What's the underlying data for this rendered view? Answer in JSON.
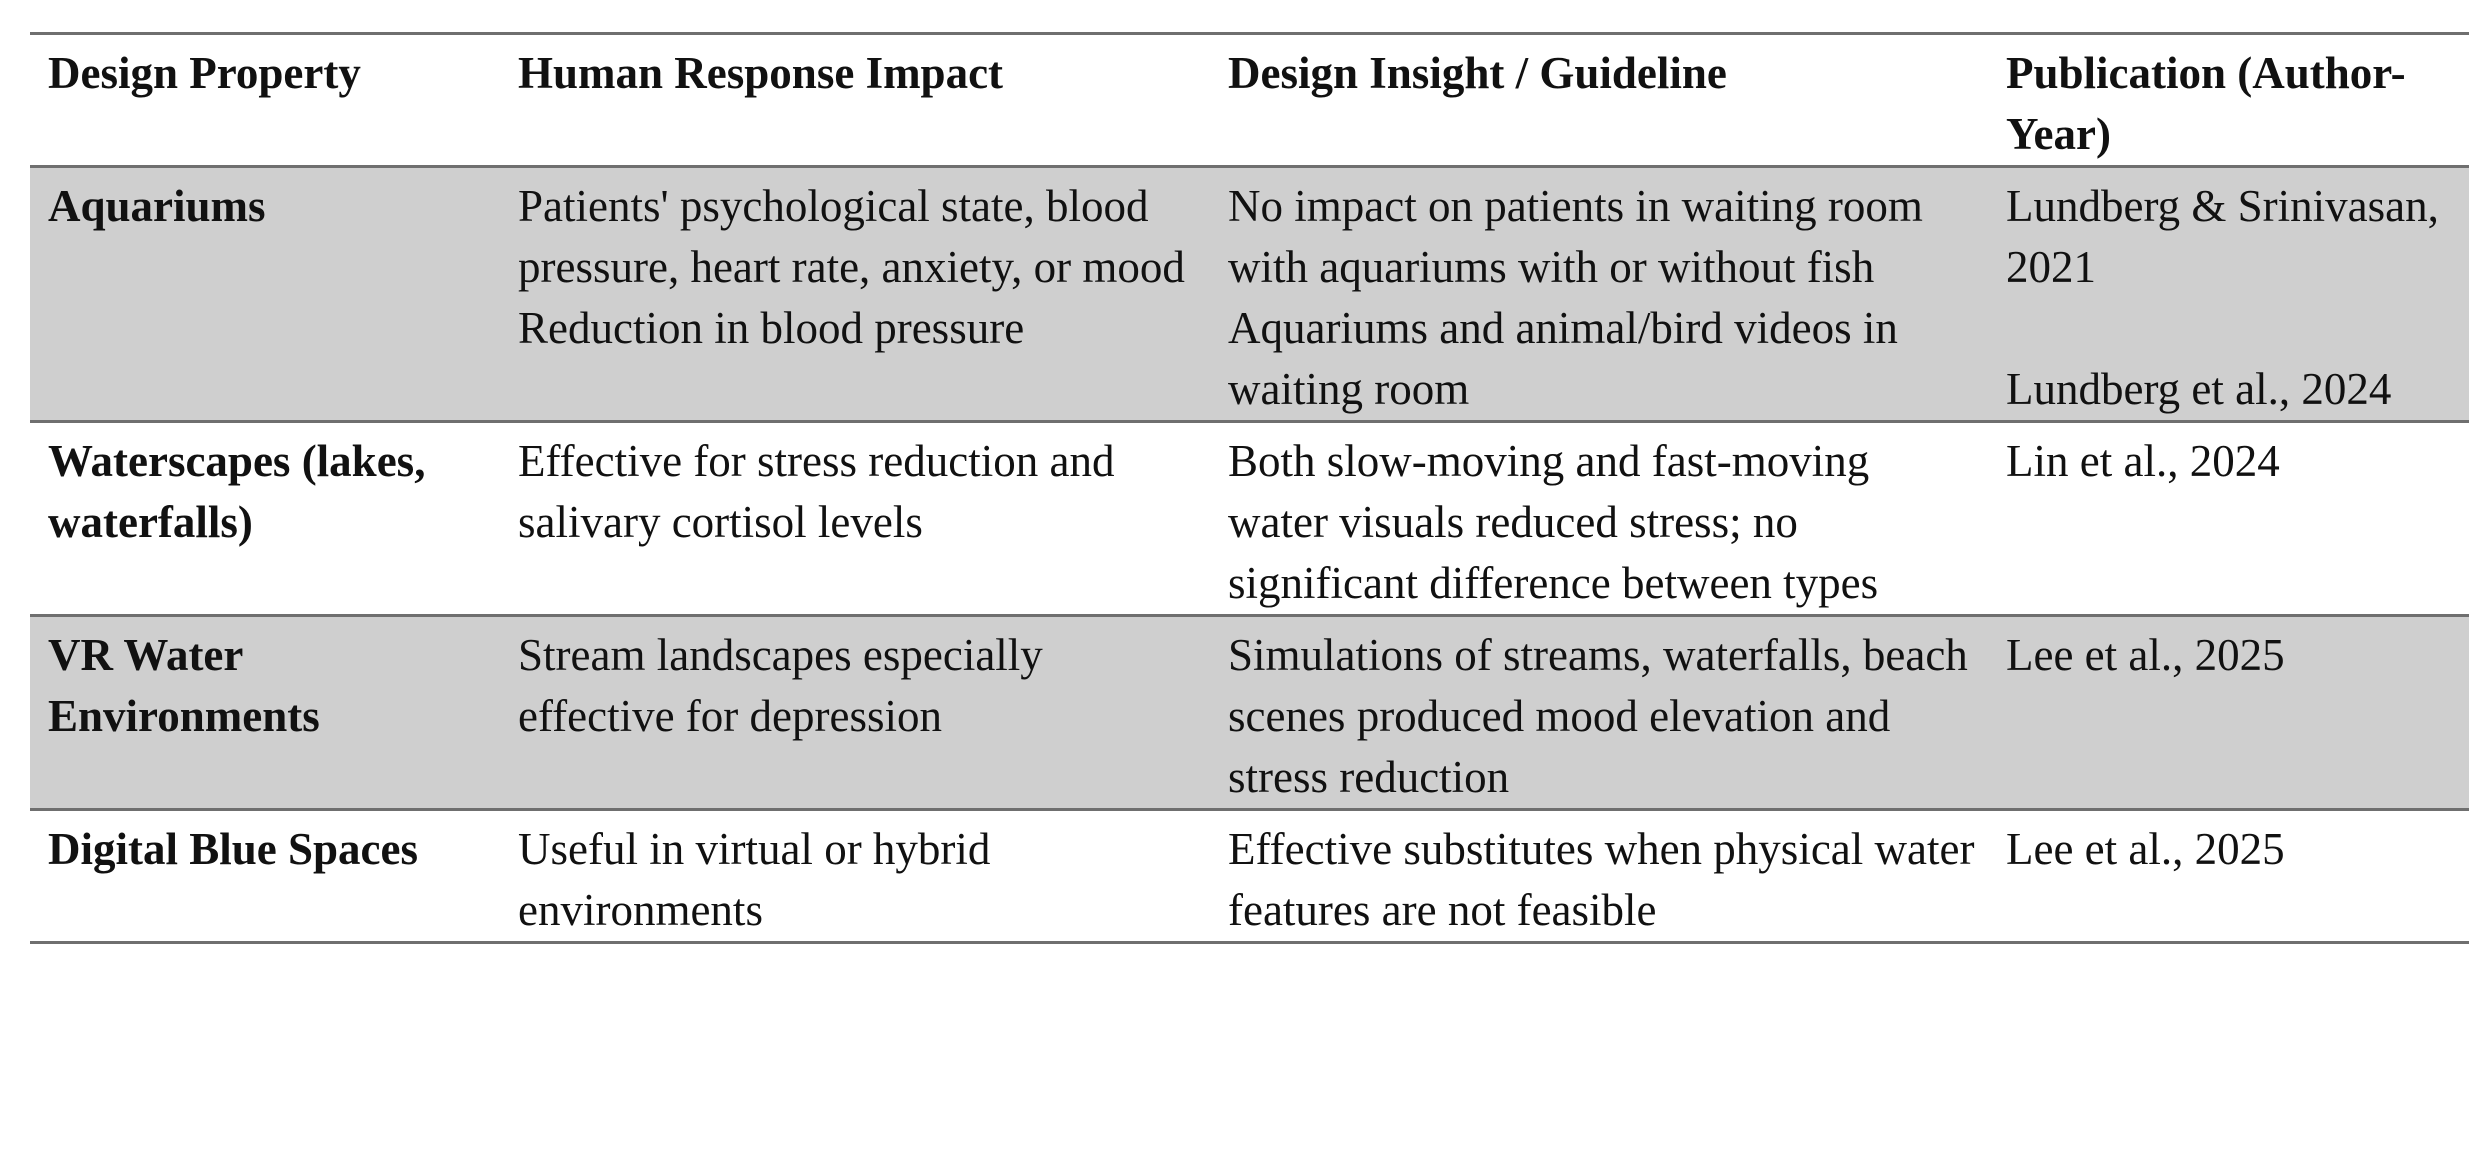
{
  "headers": [
    "Design Property",
    "Human Response Impact",
    "Design Insight / Guideline",
    "Publication (Author-Year)"
  ],
  "rows": [
    {
      "property": "Aquariums",
      "impact_1": "Patients' psychological state, blood pressure, heart rate, anxiety, or mood",
      "impact_2": "Reduction in blood pressure",
      "insight_1": "No impact on patients in waiting room with aquariums with or without fish",
      "insight_2": "Aquariums and animal/bird videos in waiting room",
      "pub_1": "Lundberg & Srinivasan, 2021",
      "pub_2": "Lundberg et al., 2024"
    },
    {
      "property": "Waterscapes (lakes, waterfalls)",
      "impact": "Effective for stress reduction and salivary cortisol levels",
      "insight": "Both slow-moving and fast-moving water visuals reduced stress; no significant difference between types",
      "pub": "Lin et al., 2024"
    },
    {
      "property": "VR Water Environments",
      "impact": "Stream landscapes especially effective for depression",
      "insight": "Simulations of streams, waterfalls, beach scenes produced mood elevation and stress reduction",
      "pub": "Lee et al., 2025"
    },
    {
      "property": "Digital Blue Spaces",
      "impact": "Useful in virtual or hybrid environments",
      "insight": "Effective substitutes when physical water features are not feasible",
      "pub": "Lee et al., 2025"
    }
  ],
  "colors": {
    "shaded_row": "#cfcfcf",
    "rule": "#6f6f6f"
  }
}
